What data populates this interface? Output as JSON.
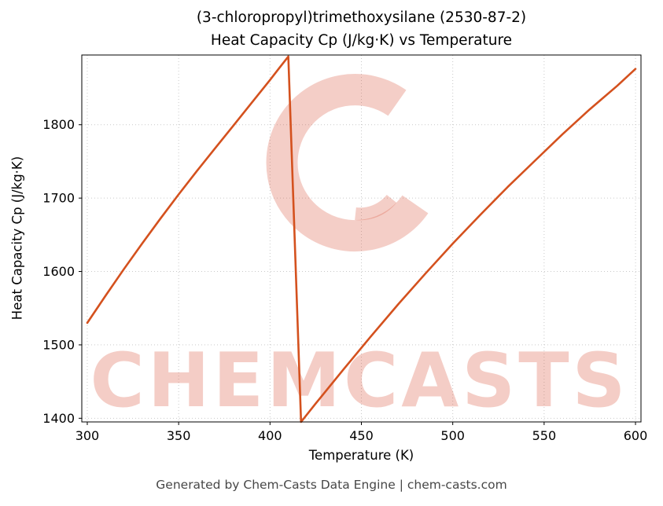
{
  "title_line1": "(3-chloropropyl)trimethoxysilane (2530-87-2)",
  "title_line2": "Heat Capacity Cp (J/kg·K) vs Temperature",
  "footer": "Generated by Chem-Casts Data Engine | chem-casts.com",
  "watermark": "CHEMCASTS",
  "theme": {
    "line_color": "#d4511e",
    "watermark_color": "#d94f35",
    "watermark_opacity": 0.28,
    "grid_color": "#c9c9c9",
    "footer_color": "#474747"
  },
  "chart_data": {
    "type": "line",
    "title": "(3-chloropropyl)trimethoxysilane (2530-87-2) Heat Capacity Cp (J/kg·K) vs Temperature",
    "xlabel": "Temperature (K)",
    "ylabel": "Heat Capacity Cp (J/kg·K)",
    "x_ticks": [
      300,
      350,
      400,
      450,
      500,
      550,
      600
    ],
    "y_ticks": [
      1400,
      1500,
      1600,
      1700,
      1800
    ],
    "xlim": [
      297,
      603
    ],
    "ylim": [
      1395,
      1895
    ],
    "grid": true,
    "legend": "none",
    "line_color": "#d4511e",
    "annotations": [
      "phase transition discontinuity near 410-417 K: Cp drops from ~1893 to ~1395 J/kg·K"
    ],
    "series": [
      {
        "name": "Heat Capacity Cp",
        "x": [
          300,
          310,
          320,
          330,
          340,
          350,
          360,
          370,
          380,
          390,
          400,
          405,
          410,
          417,
          425,
          440,
          455,
          470,
          485,
          500,
          515,
          530,
          545,
          560,
          575,
          590,
          600
        ],
        "y": [
          1530,
          1567,
          1603,
          1638,
          1672,
          1705,
          1737,
          1768,
          1799,
          1830,
          1861,
          1877,
          1893,
          1395,
          1420,
          1466,
          1511,
          1555,
          1597,
          1638,
          1677,
          1715,
          1751,
          1787,
          1821,
          1853,
          1876
        ]
      }
    ]
  }
}
